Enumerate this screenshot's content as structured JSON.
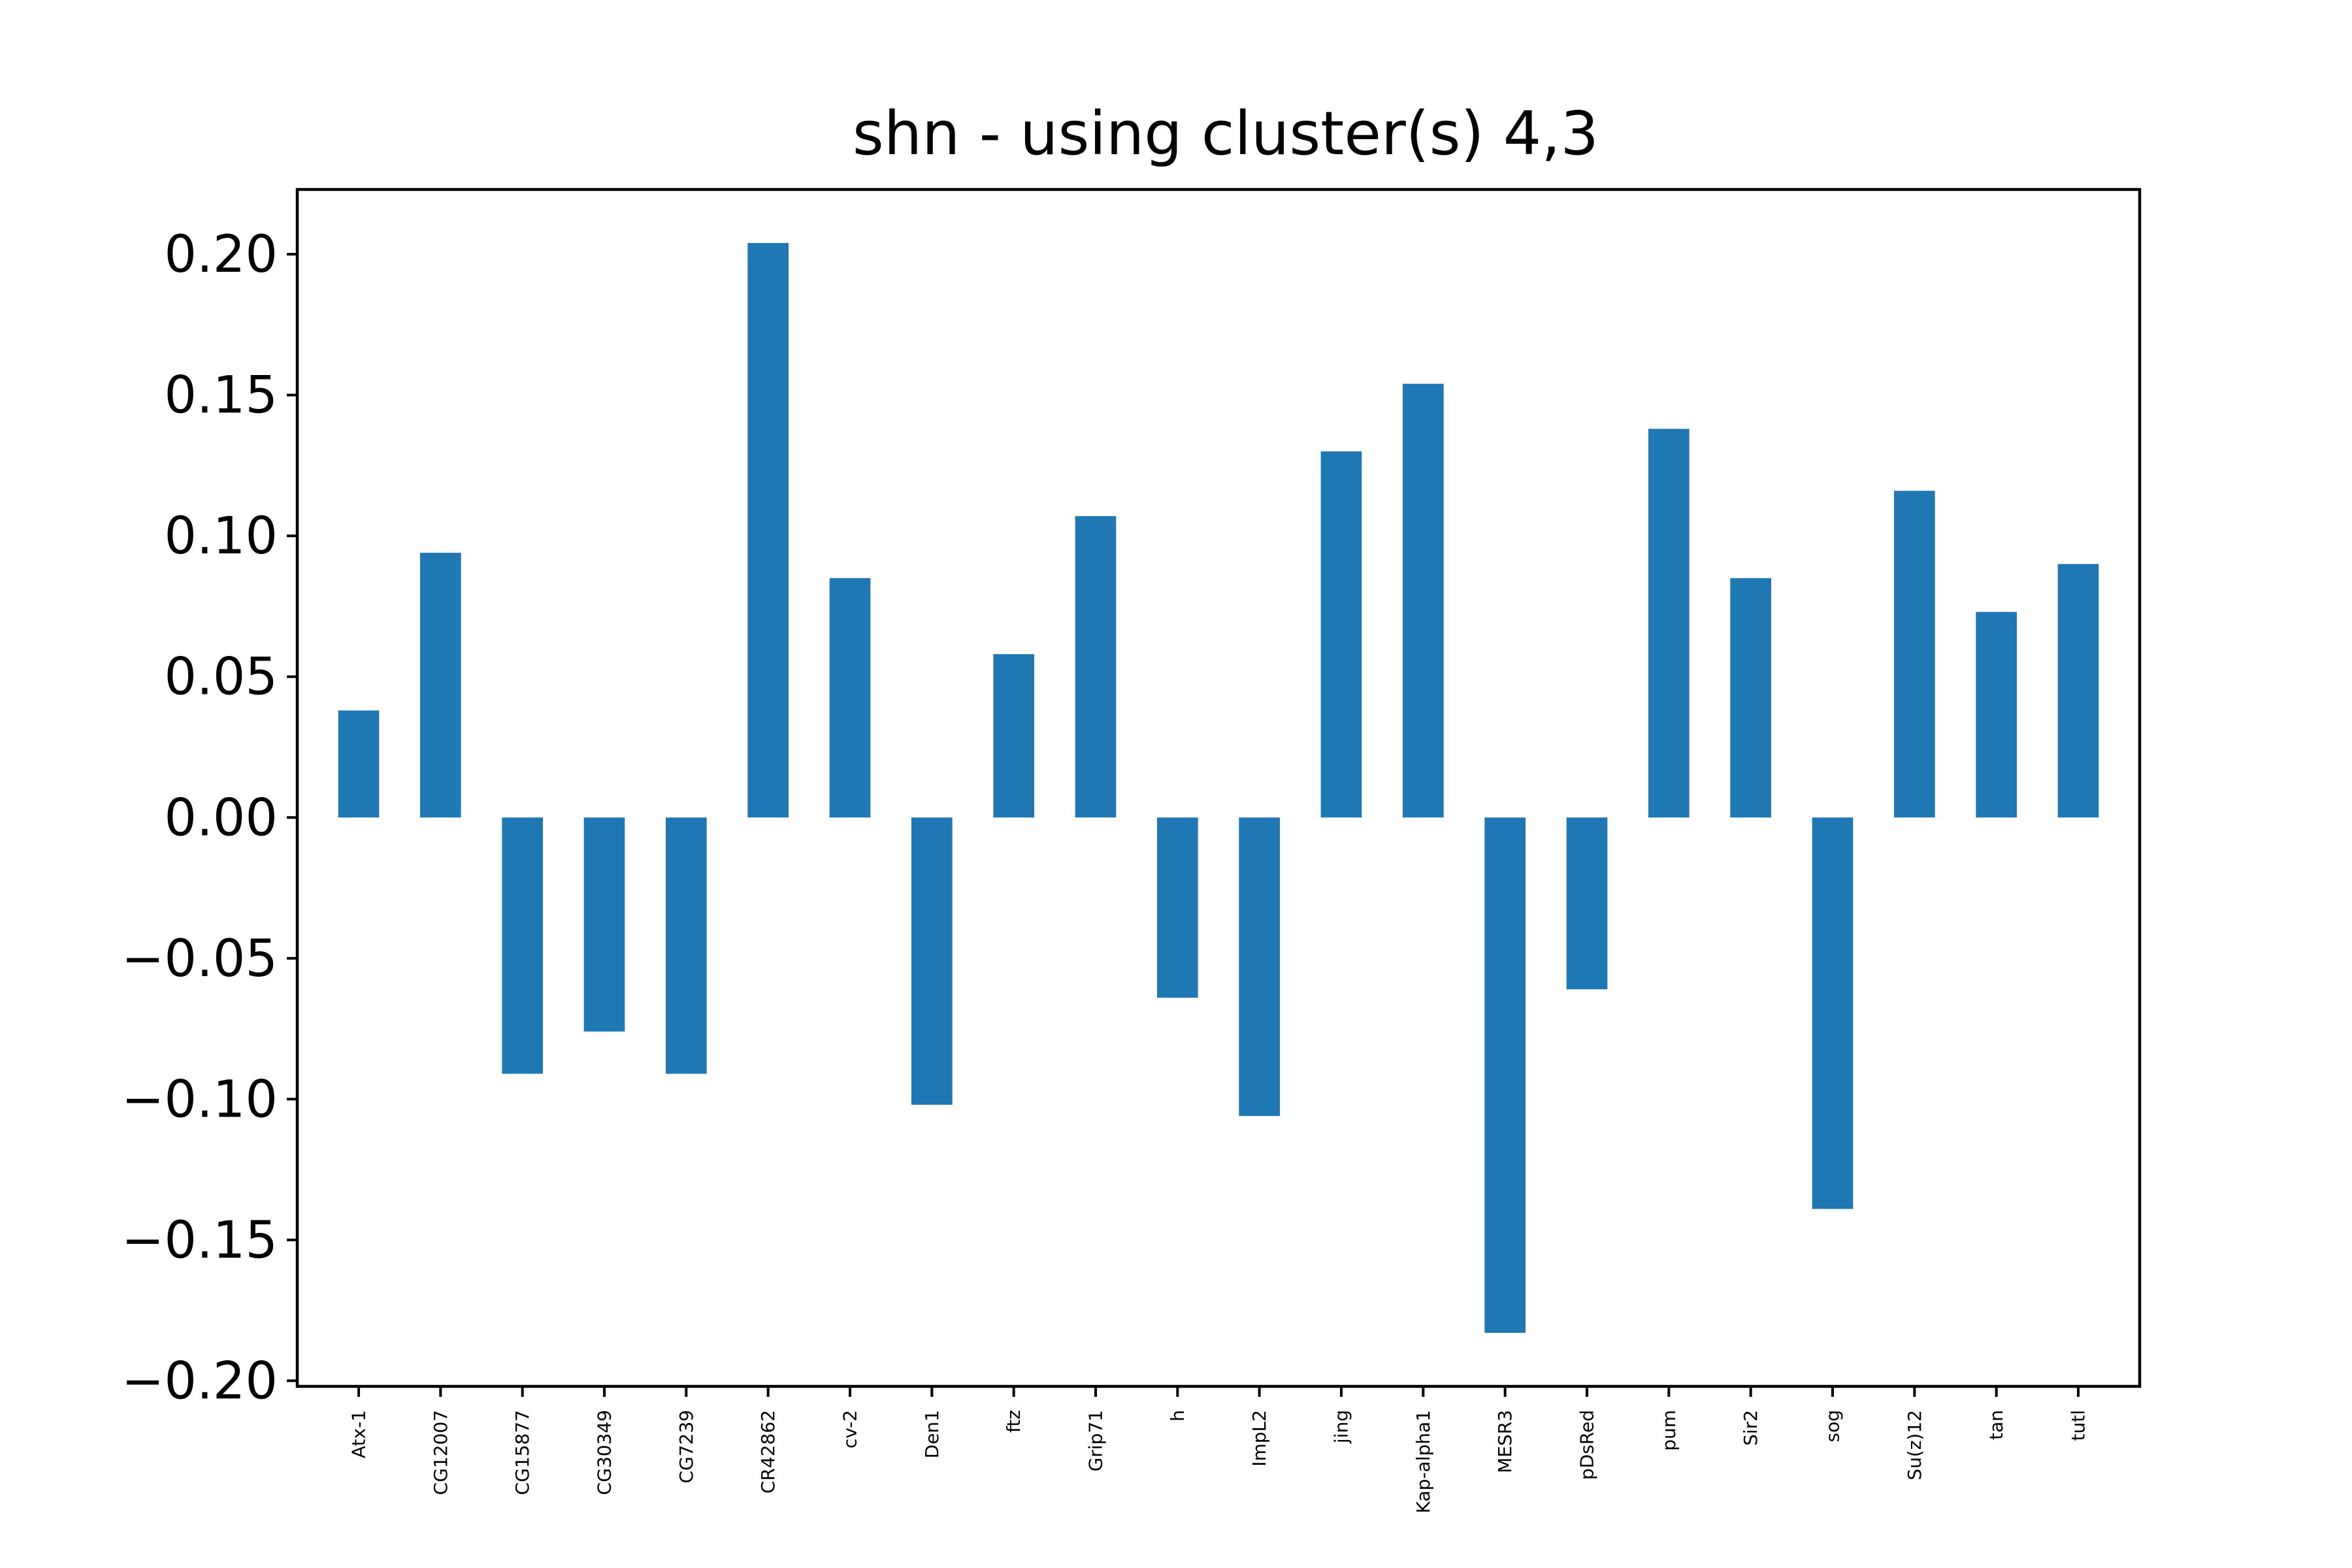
{
  "chart_data": {
    "type": "bar",
    "title": "shn - using cluster(s) 4,3",
    "xlabel": "",
    "ylabel": "",
    "categories": [
      "Atx-1",
      "CG12007",
      "CG15877",
      "CG30349",
      "CG7239",
      "CR42862",
      "cv-2",
      "Den1",
      "ftz",
      "Grip71",
      "h",
      "ImpL2",
      "jing",
      "Kap-alpha1",
      "MESR3",
      "pDsRed",
      "pum",
      "Sir2",
      "sog",
      "Su(z)12",
      "tan",
      "tutl"
    ],
    "values": [
      0.038,
      0.094,
      -0.091,
      -0.076,
      -0.091,
      0.204,
      0.085,
      -0.102,
      0.058,
      0.107,
      -0.064,
      -0.106,
      0.13,
      0.154,
      -0.183,
      -0.061,
      0.138,
      0.085,
      -0.139,
      0.116,
      0.073,
      0.09
    ],
    "yticks": [
      -0.2,
      -0.15,
      -0.1,
      -0.05,
      0.0,
      0.05,
      0.1,
      0.15,
      0.2
    ],
    "ytick_labels": [
      "−0.20",
      "−0.15",
      "−0.10",
      "−0.05",
      "0.00",
      "0.05",
      "0.10",
      "0.15",
      "0.20"
    ],
    "ylim": [
      -0.202,
      0.223
    ],
    "bar_color": "#1f77b4",
    "grid": false,
    "legend": "none"
  }
}
